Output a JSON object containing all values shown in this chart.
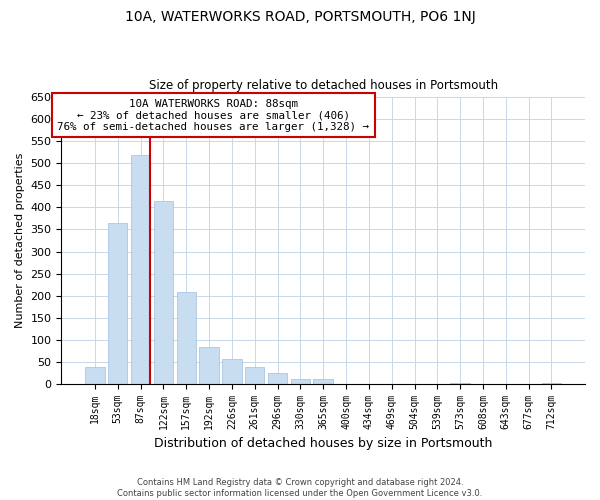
{
  "title_line1": "10A, WATERWORKS ROAD, PORTSMOUTH, PO6 1NJ",
  "title_line2": "Size of property relative to detached houses in Portsmouth",
  "xlabel": "Distribution of detached houses by size in Portsmouth",
  "ylabel": "Number of detached properties",
  "bar_labels": [
    "18sqm",
    "53sqm",
    "87sqm",
    "122sqm",
    "157sqm",
    "192sqm",
    "226sqm",
    "261sqm",
    "296sqm",
    "330sqm",
    "365sqm",
    "400sqm",
    "434sqm",
    "469sqm",
    "504sqm",
    "539sqm",
    "573sqm",
    "608sqm",
    "643sqm",
    "677sqm",
    "712sqm"
  ],
  "bar_values": [
    38,
    365,
    520,
    415,
    207,
    84,
    56,
    37,
    25,
    10,
    10,
    0,
    0,
    0,
    0,
    0,
    2,
    0,
    0,
    0,
    2
  ],
  "bar_color": "#c9ddf0",
  "bar_edge_color": "#a0bee0",
  "vertical_line_color": "#cc0000",
  "ylim_max": 650,
  "ytick_step": 50,
  "annotation_title": "10A WATERWORKS ROAD: 88sqm",
  "annotation_line2": "← 23% of detached houses are smaller (406)",
  "annotation_line3": "76% of semi-detached houses are larger (1,328) →",
  "annotation_box_color": "#ffffff",
  "annotation_box_edge": "#cc0000",
  "footer_line1": "Contains HM Land Registry data © Crown copyright and database right 2024.",
  "footer_line2": "Contains public sector information licensed under the Open Government Licence v3.0.",
  "background_color": "#ffffff",
  "grid_color": "#c8d8e8",
  "vline_bar_index": 2
}
